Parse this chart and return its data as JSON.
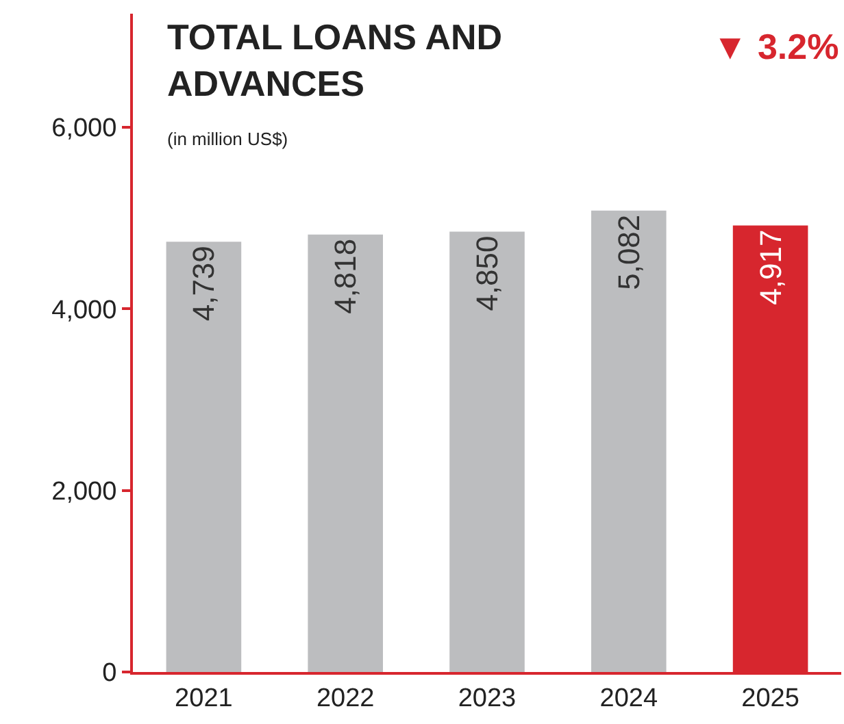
{
  "chart_data": {
    "type": "bar",
    "title": "TOTAL LOANS AND\nADVANCES",
    "subtitle": "(in million US$)",
    "categories": [
      "2021",
      "2022",
      "2023",
      "2024",
      "2025"
    ],
    "values": [
      4739,
      4818,
      4850,
      5082,
      4917
    ],
    "colors": [
      "#bcbdbf",
      "#bcbdbf",
      "#bcbdbf",
      "#bcbdbf",
      "#d7262e"
    ],
    "value_labels": [
      "4,739",
      "4,818",
      "4,850",
      "5,082",
      "4,917"
    ],
    "ylim": [
      0,
      7250
    ],
    "yticks": [
      {
        "value": 0,
        "label": "0"
      },
      {
        "value": 2000,
        "label": "2,000"
      },
      {
        "value": 4000,
        "label": "4,000"
      },
      {
        "value": 6000,
        "label": "6,000"
      }
    ],
    "annotations": [
      "▼ 3.2%"
    ],
    "grid": false
  }
}
